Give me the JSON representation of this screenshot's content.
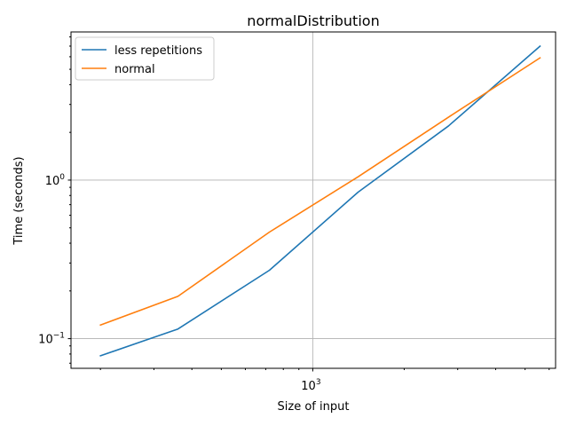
{
  "chart_data": {
    "type": "line",
    "title": "normalDistribution",
    "xlabel": "Size of input",
    "ylabel": "Time (seconds)",
    "xscale": "log",
    "yscale": "log",
    "xlim": [
      160,
      6300
    ],
    "ylim": [
      0.065,
      8.6
    ],
    "grid": true,
    "legend_position": "top-left",
    "x": [
      200,
      360,
      720,
      1410,
      2800,
      5600
    ],
    "series": [
      {
        "name": "less repetitions",
        "color": "#1f77b4",
        "values": [
          0.078,
          0.115,
          0.27,
          0.84,
          2.2,
          7.0
        ]
      },
      {
        "name": "normal",
        "color": "#ff7f0e",
        "values": [
          0.122,
          0.185,
          0.47,
          1.05,
          2.5,
          5.9
        ]
      }
    ],
    "x_ticks": [
      {
        "value": 1000,
        "label": "10",
        "exp": "3"
      }
    ],
    "x_minor_ticks": [
      200,
      300,
      400,
      500,
      600,
      700,
      800,
      900,
      2000,
      3000,
      4000,
      5000,
      6000
    ],
    "y_ticks": [
      {
        "value": 0.1,
        "label": "10",
        "exp": "−1"
      },
      {
        "value": 1,
        "label": "10",
        "exp": "0"
      }
    ],
    "y_minor_ticks": [
      0.07,
      0.08,
      0.09,
      0.2,
      0.3,
      0.4,
      0.5,
      0.6,
      0.7,
      0.8,
      0.9,
      2,
      3,
      4,
      5,
      6,
      7,
      8
    ]
  }
}
